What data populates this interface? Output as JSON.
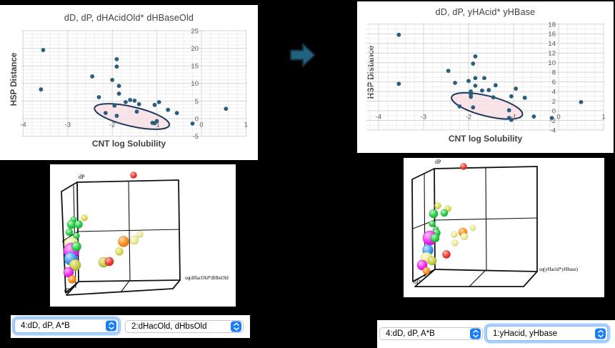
{
  "colors": {
    "background": "#000000",
    "panel": "#ffffff",
    "point": "#2b5d7c",
    "grid_minor": "#eeeeee",
    "grid_major": "#d4d4d4",
    "tick_text": "#595959",
    "ellipse_fill": "#f7dfe3",
    "ellipse_stroke": "#1f3a5c",
    "arrow_fill": "#20627f",
    "arrow_stroke": "#15313f",
    "select_accent": "#1b7ef7",
    "box_stroke": "#111111",
    "sphere": {
      "green": {
        "light": "#c6f7c9",
        "base": "#2fd24f",
        "dark": "#0f9e2e"
      },
      "yellow": {
        "light": "#f7f7c0",
        "base": "#e0e063",
        "dark": "#b9ba35"
      },
      "paleyellow": {
        "light": "#fbfadf",
        "base": "#efec9f",
        "dark": "#cfcb6d"
      },
      "olive": {
        "light": "#eef0b5",
        "base": "#ccd24e",
        "dark": "#9aa32c"
      },
      "magenta": {
        "light": "#ffc2ff",
        "base": "#f335f3",
        "dark": "#c003c0"
      },
      "blue": {
        "light": "#c9e4ff",
        "base": "#4aa0f7",
        "dark": "#1668c9"
      },
      "orange": {
        "light": "#ffe0b3",
        "base": "#ff9228",
        "dark": "#d96e08"
      },
      "red": {
        "light": "#ffc2bd",
        "base": "#f4403a",
        "dark": "#c21f1b"
      }
    }
  },
  "chart_data": [
    {
      "type": "scatter",
      "title": "dD, dP, dHAcidOld* dHBaseOld",
      "xlabel": "CNT log Solubility",
      "ylabel": "HSP Distance",
      "xlim": [
        -4,
        1
      ],
      "ylim": [
        -5,
        25
      ],
      "x_ticks": [
        -4,
        -3,
        -2,
        -1,
        0,
        1
      ],
      "y_ticks": [
        25,
        20,
        15,
        10,
        5,
        0,
        -5
      ],
      "grid": true,
      "legend": false,
      "point_color": "#2b5d7c",
      "points": [
        [
          -3.55,
          19.5
        ],
        [
          -3.6,
          8.3
        ],
        [
          -2.45,
          12.0
        ],
        [
          -1.9,
          16.9
        ],
        [
          -1.9,
          14.8
        ],
        [
          -2.0,
          11.0
        ],
        [
          -1.85,
          9.3
        ],
        [
          -1.85,
          7.1
        ],
        [
          -2.3,
          6.1
        ],
        [
          -2.15,
          1.6
        ],
        [
          -1.95,
          3.7
        ],
        [
          -1.9,
          0.8
        ],
        [
          -1.7,
          4.7
        ],
        [
          -1.6,
          5.3
        ],
        [
          -1.5,
          5.1
        ],
        [
          -1.4,
          4.1
        ],
        [
          -1.45,
          2.0
        ],
        [
          -1.05,
          3.9
        ],
        [
          -0.95,
          4.7
        ],
        [
          -0.75,
          2.5
        ],
        [
          -0.55,
          1.6
        ],
        [
          -1.1,
          -1.2
        ],
        [
          -1.05,
          -1.3
        ],
        [
          -1.0,
          -0.7
        ],
        [
          -0.2,
          -1.4
        ],
        [
          0.55,
          2.8
        ]
      ],
      "highlight_ellipse": {
        "cx": -1.56,
        "cy": 0.6,
        "rx_units": 0.86,
        "ry_units": 2.75,
        "angle_deg": 13
      }
    },
    {
      "type": "scatter",
      "title": "dD, dP, yHAcid* yHBase",
      "xlabel": "CNT log Solubility",
      "ylabel": "HSP Distance",
      "xlim": [
        -4,
        1
      ],
      "ylim": [
        -4,
        18
      ],
      "x_ticks": [
        -4,
        -3,
        -2,
        -1,
        0,
        1
      ],
      "y_ticks": [
        18,
        16,
        14,
        12,
        10,
        8,
        6,
        4,
        2,
        0,
        -2,
        -4
      ],
      "grid": true,
      "legend": false,
      "point_color": "#2b5d7c",
      "points": [
        [
          -3.55,
          15.8
        ],
        [
          -3.55,
          5.6
        ],
        [
          -2.45,
          8.3
        ],
        [
          -1.85,
          11.3
        ],
        [
          -1.9,
          9.8
        ],
        [
          -2.0,
          6.2
        ],
        [
          -2.3,
          5.8
        ],
        [
          -1.85,
          6.8
        ],
        [
          -1.65,
          6.8
        ],
        [
          -1.85,
          5.2
        ],
        [
          -1.95,
          4.0
        ],
        [
          -1.95,
          3.4
        ],
        [
          -1.95,
          2.9
        ],
        [
          -1.7,
          4.2
        ],
        [
          -1.55,
          4.3
        ],
        [
          -1.4,
          5.3
        ],
        [
          -2.2,
          0.9
        ],
        [
          -1.9,
          0.7
        ],
        [
          -1.45,
          2.8
        ],
        [
          -1.1,
          0.1
        ],
        [
          -0.95,
          4.6
        ],
        [
          -1.05,
          3.0
        ],
        [
          -0.75,
          2.7
        ],
        [
          -1.1,
          -1.5
        ],
        [
          -1.05,
          -1.9
        ],
        [
          -0.55,
          -1.2
        ],
        [
          -0.15,
          -1.5
        ],
        [
          0.5,
          1.8
        ]
      ],
      "highlight_ellipse": {
        "cx": -1.59,
        "cy": 1.0,
        "rx_units": 0.81,
        "ry_units": 2.1,
        "angle_deg": 14
      }
    }
  ],
  "plots3d": {
    "left": {
      "p_label": "dP",
      "d_label": "dD",
      "axis_label": "sq(dHacOld*dHbsOld",
      "spheres": [
        [
          117,
          15,
          4.5,
          "red"
        ],
        [
          48,
          75,
          4.5,
          "yellow"
        ],
        [
          33,
          77,
          4,
          "green"
        ],
        [
          30,
          84,
          6,
          "green"
        ],
        [
          40,
          84,
          5.5,
          "green"
        ],
        [
          27,
          95,
          5,
          "green"
        ],
        [
          37,
          100,
          4.5,
          "green"
        ],
        [
          30,
          112,
          10,
          "paleyellow"
        ],
        [
          30,
          121,
          11,
          "magenta"
        ],
        [
          37,
          115,
          6.5,
          "green"
        ],
        [
          29,
          132,
          9,
          "blue"
        ],
        [
          35,
          141,
          8,
          "olive"
        ],
        [
          26,
          151,
          7,
          "magenta"
        ],
        [
          31,
          161,
          5.5,
          "orange"
        ],
        [
          75,
          137,
          7,
          "olive"
        ],
        [
          83,
          136,
          6,
          "red"
        ],
        [
          97,
          122,
          5.5,
          "yellow"
        ],
        [
          103,
          108,
          7.5,
          "orange"
        ],
        [
          118,
          106,
          6,
          "paleyellow"
        ],
        [
          126,
          98,
          4.5,
          "paleyellow"
        ]
      ]
    },
    "right": {
      "p_label": "dP",
      "d_label": "dD",
      "axis_label": "sq(yHacid*yHbase)",
      "spheres": [
        [
          84,
          12,
          4.5,
          "red"
        ],
        [
          48,
          67,
          4.5,
          "yellow"
        ],
        [
          62,
          71,
          4.5,
          "yellow"
        ],
        [
          42,
          78,
          6,
          "green"
        ],
        [
          57,
          77,
          5,
          "green"
        ],
        [
          40,
          92,
          4.5,
          "green"
        ],
        [
          45,
          100,
          4,
          "green"
        ],
        [
          46,
          105,
          5.5,
          "green"
        ],
        [
          37,
          112,
          10,
          "magenta"
        ],
        [
          44,
          112,
          6,
          "green"
        ],
        [
          34,
          129,
          7.5,
          "blue"
        ],
        [
          32,
          140,
          8,
          "paleyellow"
        ],
        [
          40,
          144,
          6,
          "olive"
        ],
        [
          26,
          150,
          7,
          "magenta"
        ],
        [
          32,
          158,
          5,
          "orange"
        ],
        [
          60,
          135,
          5.5,
          "red"
        ],
        [
          71,
          107,
          4.5,
          "paleyellow"
        ],
        [
          72,
          119,
          4.5,
          "paleyellow"
        ],
        [
          83,
          104,
          6,
          "orange"
        ],
        [
          85,
          110,
          5,
          "paleyellow"
        ],
        [
          97,
          98,
          4,
          "paleyellow"
        ]
      ]
    }
  },
  "controls": {
    "left_selects": [
      {
        "label": "4:dD, dP, A*B",
        "focused": true
      },
      {
        "label": "2:dHacOld, dHbsOld",
        "focused": false
      }
    ],
    "right_selects": [
      {
        "label": "4:dD, dP, A*B",
        "focused": false
      },
      {
        "label": "1:yHacid, yHbase",
        "focused": true
      }
    ]
  }
}
